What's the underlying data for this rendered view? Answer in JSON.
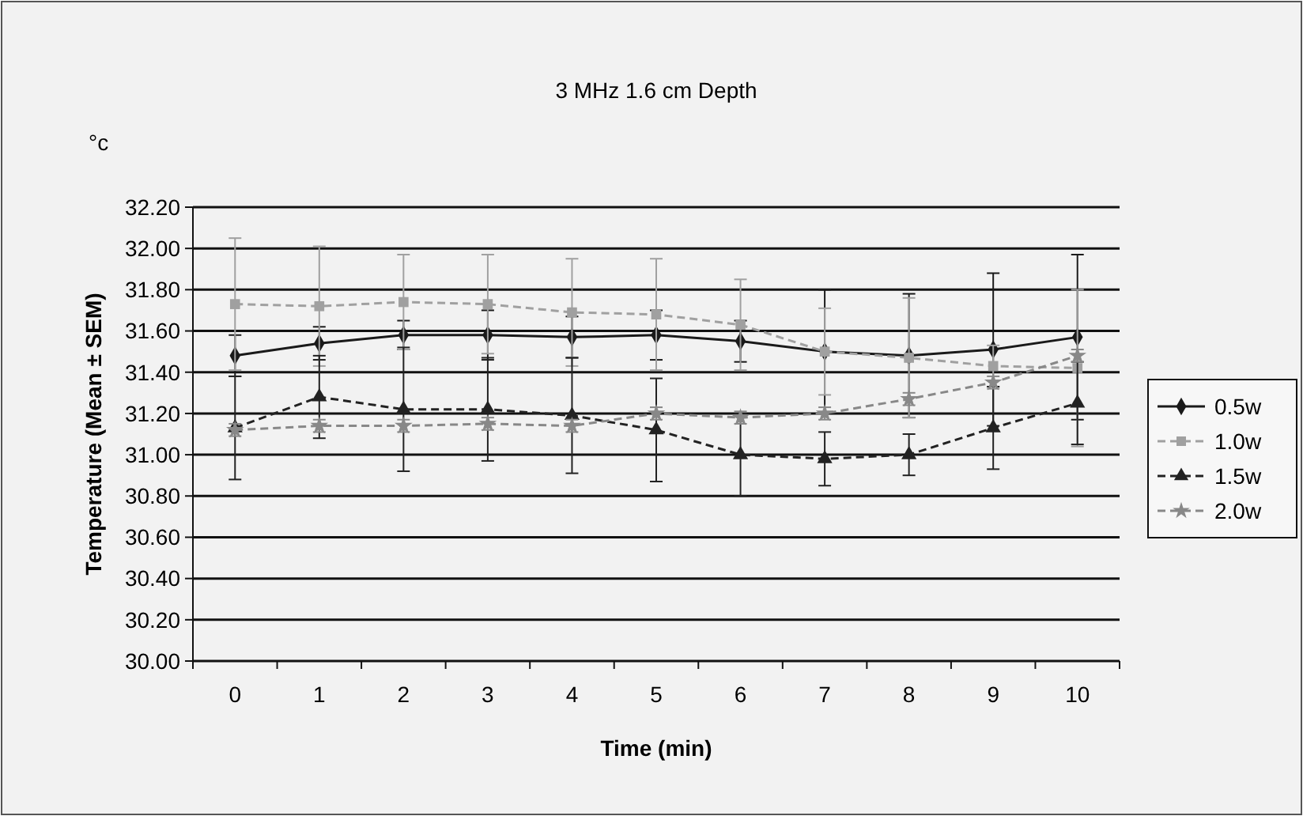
{
  "chart_data": {
    "type": "line",
    "title": "3 MHz 1.6 cm Depth",
    "xlabel": "Time (min)",
    "ylabel": "Temperature (Mean ± SEM)",
    "annotations": [
      "°c"
    ],
    "categories": [
      "0",
      "1",
      "2",
      "3",
      "4",
      "5",
      "6",
      "7",
      "8",
      "9",
      "10"
    ],
    "ylim": [
      30,
      32.2
    ],
    "yticks": [
      {
        "value": 30,
        "label": "30.00"
      },
      {
        "value": 30.2,
        "label": "30.20"
      },
      {
        "value": 30.4,
        "label": "30.40"
      },
      {
        "value": 30.6,
        "label": "30.60"
      },
      {
        "value": 30.8,
        "label": "30.80"
      },
      {
        "value": 31,
        "label": "31.00"
      },
      {
        "value": 31.2,
        "label": "31.20"
      },
      {
        "value": 31.4,
        "label": "31.40"
      },
      {
        "value": 31.6,
        "label": "31.60"
      },
      {
        "value": 31.8,
        "label": "31.80"
      },
      {
        "value": 32,
        "label": "32.00"
      },
      {
        "value": 32.2,
        "label": "32.20"
      }
    ],
    "grid": "y",
    "legend": "right",
    "series": [
      {
        "name": "0.5w",
        "color": "#1a1a1a",
        "marker": "diamond",
        "line_style": "solid",
        "values": [
          31.48,
          31.54,
          31.58,
          31.58,
          31.57,
          31.58,
          31.55,
          31.5,
          31.48,
          31.51,
          31.57
        ],
        "errors": [
          0.1,
          0.08,
          0.07,
          0.12,
          0.1,
          0.12,
          0.1,
          0.3,
          0.3,
          0.37,
          0.4
        ]
      },
      {
        "name": "1.0w",
        "color": "#a0a0a0",
        "marker": "square",
        "line_style": "dashed",
        "values": [
          31.73,
          31.72,
          31.74,
          31.73,
          31.69,
          31.68,
          31.63,
          31.5,
          31.47,
          31.43,
          31.42
        ],
        "errors": [
          0.32,
          0.29,
          0.23,
          0.24,
          0.26,
          0.27,
          0.22,
          0.21,
          0.29,
          0.1,
          0.38
        ]
      },
      {
        "name": "1.5w",
        "color": "#222222",
        "marker": "triangle",
        "line_style": "dashed",
        "values": [
          31.13,
          31.28,
          31.22,
          31.22,
          31.19,
          31.12,
          31,
          30.98,
          31,
          31.13,
          31.25
        ],
        "errors": [
          0.25,
          0.2,
          0.3,
          0.25,
          0.28,
          0.25,
          0.2,
          0.13,
          0.1,
          0.2,
          0.2
        ]
      },
      {
        "name": "2.0w",
        "color": "#888888",
        "marker": "star",
        "line_style": "dashed",
        "values": [
          31.12,
          31.14,
          31.14,
          31.15,
          31.14,
          31.2,
          31.18,
          31.2,
          31.27,
          31.35,
          31.48
        ],
        "errors": [
          0.03,
          0.03,
          0.03,
          0.03,
          0.03,
          0.03,
          0.03,
          0.03,
          0.03,
          0.03,
          0.03
        ]
      }
    ]
  }
}
